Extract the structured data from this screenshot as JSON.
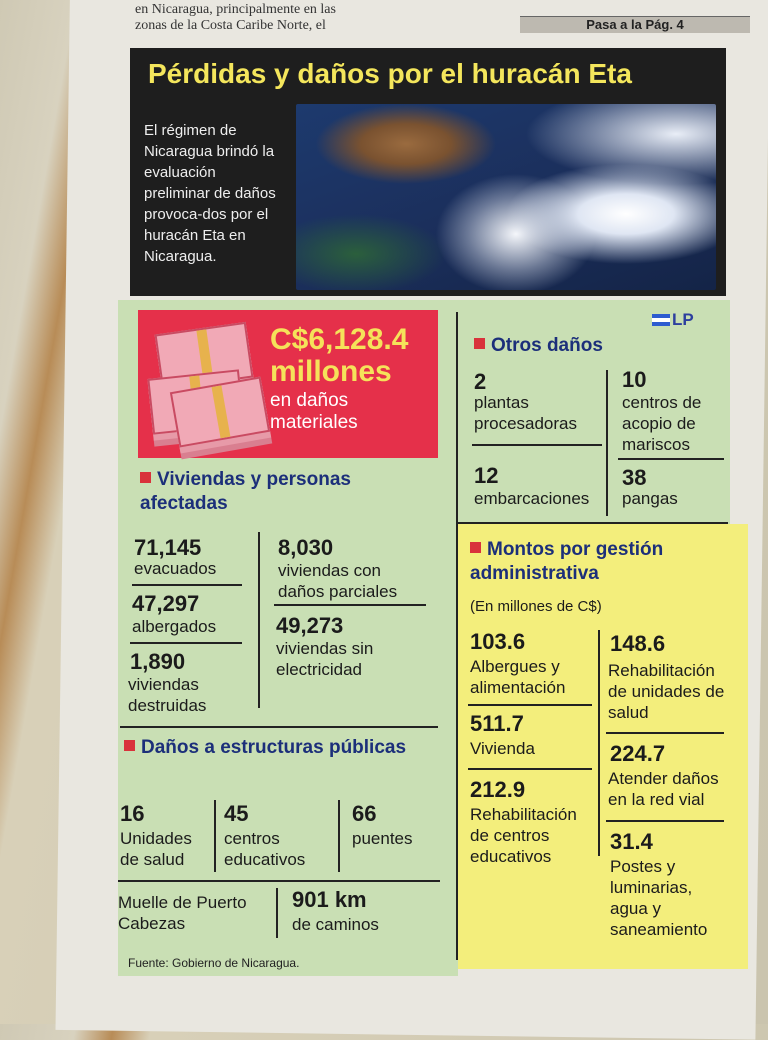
{
  "top": {
    "col_line1": "en Nicaragua, principalmente en las",
    "col_line2": "zonas de la Costa Caribe Norte, el",
    "pasa": "Pasa a la Pág. 4"
  },
  "title": "Pérdidas y daños por el huracán Eta",
  "intro": "El régimen de Nicaragua brindó la evaluación preliminar de daños provoca-dos por el huracán Eta en Nicaragua.",
  "logo": "LP",
  "total": {
    "amount": "C$6,128.4",
    "unit": "millones",
    "desc": "en daños materiales"
  },
  "viviendas": {
    "title": "Viviendas y personas afectadas",
    "items": [
      {
        "num": "71,145",
        "label": "evacuados"
      },
      {
        "num": "47,297",
        "label": "albergados"
      },
      {
        "num": "1,890",
        "label": "viviendas destruidas"
      },
      {
        "num": "8,030",
        "label": "viviendas con daños parciales"
      },
      {
        "num": "49,273",
        "label": "viviendas sin electricidad"
      }
    ]
  },
  "estructuras": {
    "title": "Daños a estructuras públicas",
    "items": [
      {
        "num": "16",
        "label": "Unidades de salud"
      },
      {
        "num": "45",
        "label": "centros educativos"
      },
      {
        "num": "66",
        "label": "puentes"
      }
    ],
    "muelle": "Muelle de Puerto Cabezas",
    "caminos_num": "901 km",
    "caminos_label": "de caminos"
  },
  "otros": {
    "title": "Otros daños",
    "items": [
      {
        "num": "2",
        "label": "plantas procesadoras"
      },
      {
        "num": "10",
        "label": "centros de acopio de mariscos"
      },
      {
        "num": "12",
        "label": "embarcaciones"
      },
      {
        "num": "38",
        "label": "pangas"
      }
    ]
  },
  "montos": {
    "title": "Montos por gestión administrativa",
    "subtitle": "(En millones de C$)",
    "items": [
      {
        "num": "103.6",
        "label": "Albergues y alimentación"
      },
      {
        "num": "511.7",
        "label": "Vivienda"
      },
      {
        "num": "212.9",
        "label": "Rehabilitación de centros educativos"
      },
      {
        "num": "148.6",
        "label": "Rehabilitación de unidades de salud"
      },
      {
        "num": "224.7",
        "label": "Atender daños en la red vial"
      },
      {
        "num": "31.4",
        "label": "Postes y luminarias, agua y saneamiento"
      }
    ]
  },
  "source": "Fuente: Gobierno de Nicaragua.",
  "colors": {
    "title_yellow": "#f4e65c",
    "red_box": "#e5304a",
    "green_bg": "#c9dfb4",
    "yellow_bg": "#f3ee7c",
    "heading_blue": "#1c2f7a"
  }
}
